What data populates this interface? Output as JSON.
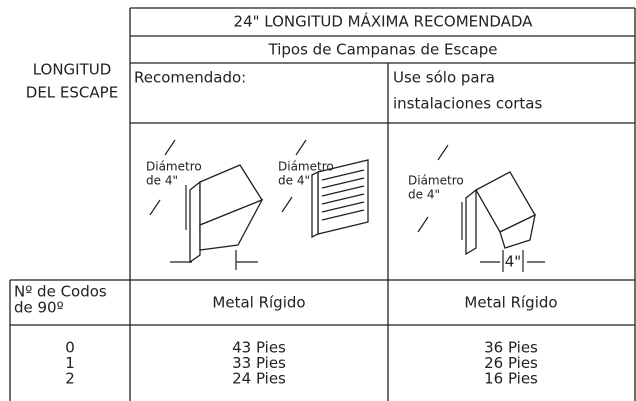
{
  "header": {
    "title": "24\" LONGITUD MÁXIMA RECOMENDADA",
    "subtitle": "Tipos de Campanas de Escape",
    "row_label": [
      "LONGITUD",
      "DEL ESCAPE"
    ]
  },
  "hood_groups": [
    {
      "label": "Recomendado:"
    },
    {
      "label": [
        "Use sólo para",
        "instalaciones cortas"
      ]
    }
  ],
  "illustrations": [
    {
      "label": [
        "Diámetro",
        "de 4\""
      ]
    },
    {
      "label": [
        "Diámetro",
        "de 4\""
      ]
    },
    {
      "label": [
        "Diámetro",
        "de 4\""
      ],
      "dimension": "4\""
    }
  ],
  "table": {
    "columns": [
      [
        "Nº de Codos",
        "de 90º"
      ],
      "Metal Rígido",
      "Metal Rígido"
    ],
    "rows": [
      [
        "0",
        "43 Pies",
        "36 Pies"
      ],
      [
        "1",
        "33 Pies",
        "26 Pies"
      ],
      [
        "2",
        "24 Pies",
        "16 Pies"
      ]
    ]
  }
}
